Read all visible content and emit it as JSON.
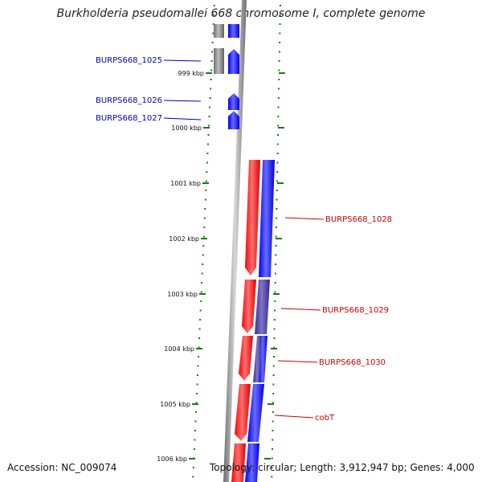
{
  "title": "Burkholderia pseudomallei 668 chromosome I, complete genome",
  "footer": {
    "accession": "Accession: NC_009074",
    "topology": "Topology: circular; Length: 3,912,947 bp; Genes: 4,000"
  },
  "colors": {
    "forward_strand": "#0000ff",
    "reverse_strand": "#ff0000",
    "other_feature": "#808080",
    "purple_feature": "#4b3fa0",
    "ruler": "#1a7a1a",
    "backbone": "#888888",
    "label_forward": "#0000c0",
    "label_reverse": "#cc0000"
  },
  "ruler_ticks": [
    {
      "label": "999 kbp"
    },
    {
      "label": "1000 kbp"
    },
    {
      "label": "1001 kbp"
    },
    {
      "label": "1002 kbp"
    },
    {
      "label": "1003 kbp"
    },
    {
      "label": "1004 kbp"
    },
    {
      "label": "1005 kbp"
    },
    {
      "label": "1006 kbp"
    }
  ],
  "gene_labels": [
    {
      "name": "BURPS668_1025",
      "strand": "forward"
    },
    {
      "name": "BURPS668_1026",
      "strand": "forward"
    },
    {
      "name": "BURPS668_1027",
      "strand": "forward"
    },
    {
      "name": "BURPS668_1028",
      "strand": "reverse"
    },
    {
      "name": "BURPS668_1029",
      "strand": "reverse"
    },
    {
      "name": "BURPS668_1030",
      "strand": "reverse"
    },
    {
      "name": "cobT",
      "strand": "reverse"
    }
  ]
}
